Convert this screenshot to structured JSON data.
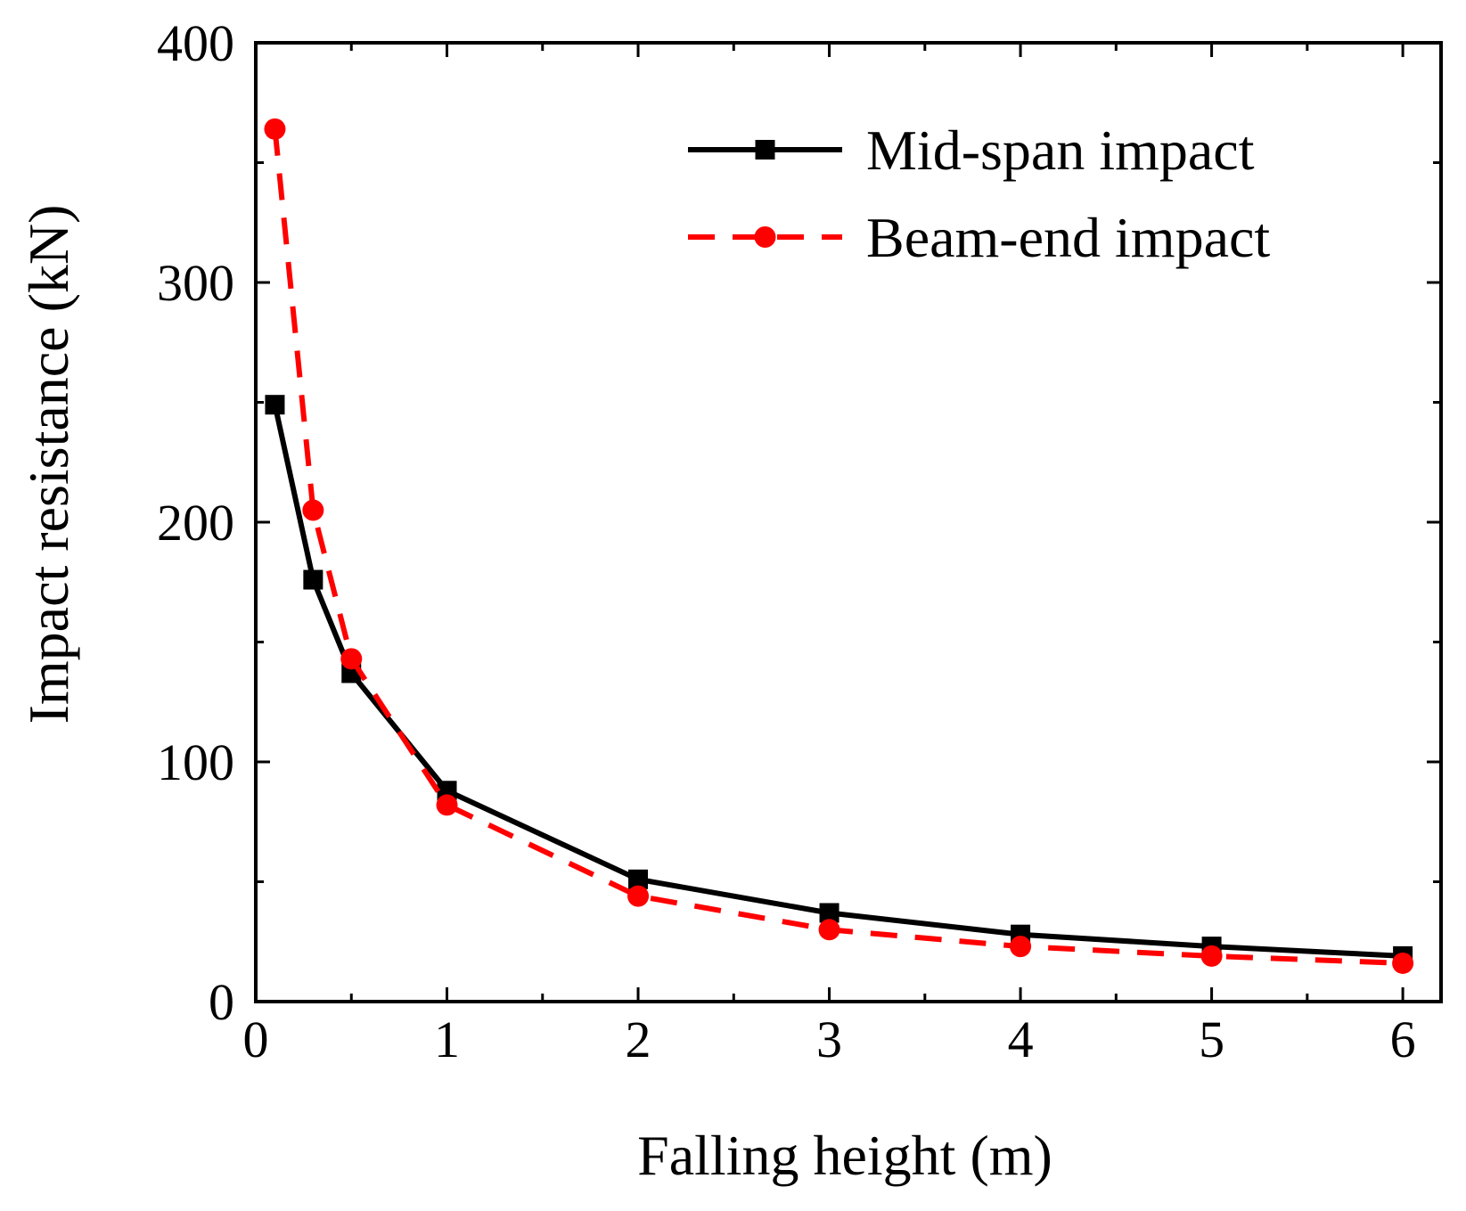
{
  "chart_data": {
    "type": "line",
    "title": "",
    "xlabel": "Falling height (m)",
    "ylabel": "Impact resistance (kN)",
    "xlim": [
      0,
      6.2
    ],
    "ylim": [
      0,
      400
    ],
    "x_ticks": [
      0,
      1,
      2,
      3,
      4,
      5,
      6
    ],
    "x_tick_labels": [
      "0",
      "1",
      "2",
      "3",
      "4",
      "5",
      "6"
    ],
    "x_minor_ticks": [
      0.5,
      1.5,
      2.5,
      3.5,
      4.5,
      5.5
    ],
    "y_ticks": [
      0,
      100,
      200,
      300,
      400
    ],
    "y_tick_labels": [
      "0",
      "100",
      "200",
      "300",
      "400"
    ],
    "y_minor_ticks": [
      50,
      150,
      250,
      350
    ],
    "grid": false,
    "legend_position": "top-right",
    "x": [
      0.1,
      0.3,
      0.5,
      1,
      2,
      3,
      4,
      5,
      6
    ],
    "series": [
      {
        "name": "Mid-span impact",
        "color": "#000000",
        "line_style": "solid",
        "marker": "square",
        "values": [
          249,
          176,
          137,
          88,
          51,
          37,
          28,
          23,
          19
        ]
      },
      {
        "name": "Beam-end impact",
        "color": "#ff0000",
        "line_style": "dashed",
        "marker": "circle",
        "values": [
          364,
          205,
          143,
          82,
          44,
          30,
          23,
          19,
          16
        ]
      }
    ]
  }
}
